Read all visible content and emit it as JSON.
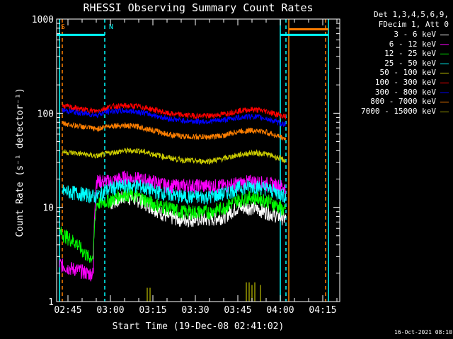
{
  "colors": {
    "background": "#000000",
    "axes": "#ffffff",
    "attenuator": "#00ffff",
    "saa": "#00ffff",
    "night": "#ff7f00"
  },
  "stamp": "16-Oct-2021 08:10",
  "chart_data": {
    "type": "line",
    "title": "RHESSI Observing Summary Count Rates",
    "xlabel": "Start Time (19-Dec-08 02:41:02)",
    "ylabel": "Count Rate (s⁻¹ detector⁻¹)",
    "y_scale": "log",
    "ylim": [
      1,
      1000
    ],
    "xlim": [
      "02:41",
      "04:21"
    ],
    "x_ticks": [
      "02:45",
      "03:00",
      "03:15",
      "03:30",
      "03:45",
      "04:00",
      "04:15"
    ],
    "y_ticks": [
      "1",
      "10",
      "100",
      "1000"
    ],
    "legend_header": [
      "Det 1,3,4,5,6,9,",
      "FDecim 1, Att 0"
    ],
    "legend_position": "right",
    "markers": [
      {
        "label": "S",
        "time": "02:42",
        "color": "#ff7f00"
      },
      {
        "label": "N",
        "time": "02:59",
        "color": "#00ffff"
      }
    ],
    "vertical_lines": [
      {
        "time": "02:42",
        "color": "#00ffff",
        "style": "solid"
      },
      {
        "time": "02:43",
        "color": "#ff7f00",
        "style": "dashed"
      },
      {
        "time": "02:58",
        "color": "#00ffff",
        "style": "dashed"
      },
      {
        "time": "04:00",
        "color": "#00ffff",
        "style": "solid"
      },
      {
        "time": "04:02",
        "color": "#00ffff",
        "style": "dashed"
      },
      {
        "time": "04:03",
        "color": "#ff7f00",
        "style": "solid"
      },
      {
        "time": "04:16",
        "color": "#ff7f00",
        "style": "dashed"
      },
      {
        "time": "04:17",
        "color": "#00ffff",
        "style": "solid"
      }
    ],
    "flag_bars": [
      {
        "start": "02:41",
        "end": "02:58",
        "level": 680,
        "color": "#00ffff"
      },
      {
        "start": "04:00",
        "end": "04:17",
        "level": 680,
        "color": "#00ffff"
      },
      {
        "start": "04:03",
        "end": "04:17",
        "level": 780,
        "color": "#ff7f00"
      }
    ],
    "series": [
      {
        "name": "3 - 6 keV",
        "color": "#ffffff",
        "legend_line_color": "#ffffff",
        "x": [
          "02:52",
          "02:55",
          "02:58",
          "03:00",
          "03:05",
          "03:10",
          "03:15",
          "03:20",
          "03:25",
          "03:30",
          "03:35",
          "03:40",
          "03:45",
          "03:50",
          "03:55",
          "04:00",
          "04:02"
        ],
        "y": [
          null,
          null,
          null,
          11,
          13,
          12,
          10,
          8,
          7.5,
          7.5,
          7.5,
          8,
          10,
          10,
          9,
          8,
          7.5
        ]
      },
      {
        "name": "6 - 12 keV",
        "color": "#ff00ff",
        "x": [
          "02:42",
          "02:45",
          "02:48",
          "02:50",
          "02:52",
          "02:54",
          "02:55",
          "03:00",
          "03:05",
          "03:10",
          "03:15",
          "03:20",
          "03:25",
          "03:30",
          "03:35",
          "03:40",
          "03:45",
          "03:50",
          "03:55",
          "04:00",
          "04:02"
        ],
        "y": [
          2.5,
          2.3,
          2.2,
          2.1,
          2.0,
          2.0,
          19,
          19,
          21,
          20,
          19,
          17,
          17,
          17,
          17,
          17,
          18,
          19,
          18,
          17,
          16
        ]
      },
      {
        "name": "12 - 25 keV",
        "color": "#00ff00",
        "x": [
          "02:42",
          "02:45",
          "02:48",
          "02:50",
          "02:52",
          "02:54",
          "02:55",
          "03:00",
          "03:05",
          "03:10",
          "03:15",
          "03:20",
          "03:25",
          "03:30",
          "03:35",
          "03:40",
          "03:45",
          "03:50",
          "03:55",
          "04:00",
          "04:02"
        ],
        "y": [
          5.5,
          4.8,
          4.2,
          3.5,
          3.0,
          3.0,
          11,
          12,
          14,
          13,
          11,
          10,
          9,
          9,
          9,
          10,
          12,
          13,
          12,
          10,
          9
        ]
      },
      {
        "name": "25 - 50 keV",
        "color": "#00ffff",
        "x": [
          "02:43",
          "02:50",
          "02:55",
          "03:00",
          "03:05",
          "03:10",
          "03:15",
          "03:20",
          "03:25",
          "03:30",
          "03:35",
          "03:40",
          "03:45",
          "03:50",
          "03:55",
          "04:00",
          "04:02"
        ],
        "y": [
          15,
          14,
          13,
          16,
          17,
          17,
          15,
          14,
          13,
          13,
          13,
          14,
          16,
          17,
          16,
          14,
          13
        ]
      },
      {
        "name": "50 - 100 keV",
        "color": "#cccc00",
        "x": [
          "02:43",
          "02:50",
          "02:55",
          "03:00",
          "03:05",
          "03:10",
          "03:15",
          "03:20",
          "03:25",
          "03:30",
          "03:35",
          "03:40",
          "03:45",
          "03:50",
          "03:55",
          "04:00",
          "04:02"
        ],
        "y": [
          39,
          37,
          35,
          38,
          40,
          40,
          37,
          34,
          32,
          31,
          31,
          33,
          36,
          38,
          37,
          33,
          31
        ]
      },
      {
        "name": "100 - 300 keV",
        "color": "#ff0000",
        "x": [
          "02:43",
          "02:50",
          "02:55",
          "03:00",
          "03:05",
          "03:10",
          "03:15",
          "03:20",
          "03:25",
          "03:30",
          "03:35",
          "03:40",
          "03:45",
          "03:50",
          "03:55",
          "04:00",
          "04:02"
        ],
        "y": [
          120,
          110,
          105,
          118,
          120,
          118,
          110,
          100,
          96,
          94,
          94,
          98,
          106,
          110,
          105,
          95,
          92
        ]
      },
      {
        "name": "300 - 800 keV",
        "color": "#0000ff",
        "x": [
          "02:43",
          "02:50",
          "02:55",
          "03:00",
          "03:05",
          "03:10",
          "03:15",
          "03:20",
          "03:25",
          "03:30",
          "03:35",
          "03:40",
          "03:45",
          "03:50",
          "03:55",
          "04:00",
          "04:02"
        ],
        "y": [
          108,
          100,
          96,
          105,
          106,
          104,
          96,
          88,
          84,
          82,
          82,
          85,
          90,
          93,
          88,
          78,
          76
        ]
      },
      {
        "name": "800 - 7000 keV",
        "color": "#ff7f00",
        "x": [
          "02:43",
          "02:50",
          "02:55",
          "03:00",
          "03:05",
          "03:10",
          "03:15",
          "03:20",
          "03:25",
          "03:30",
          "03:35",
          "03:40",
          "03:45",
          "03:50",
          "03:55",
          "04:00",
          "04:02"
        ],
        "y": [
          78,
          72,
          68,
          74,
          74,
          72,
          66,
          60,
          57,
          56,
          56,
          58,
          64,
          66,
          63,
          56,
          53
        ]
      },
      {
        "name": "7000 - 15000 keV",
        "color": "#999900",
        "x": [
          "03:13",
          "03:14",
          "03:48",
          "03:49",
          "03:50",
          "03:51",
          "03:53"
        ],
        "y": [
          1.4,
          1.4,
          1.6,
          1.6,
          1.5,
          1.6,
          1.5
        ]
      }
    ]
  }
}
